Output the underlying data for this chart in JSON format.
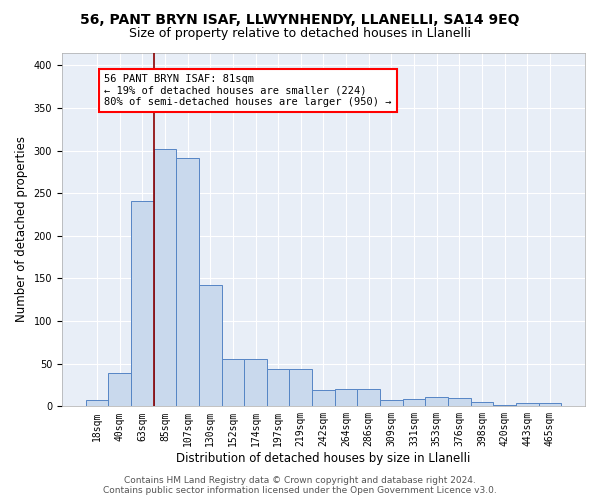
{
  "title1": "56, PANT BRYN ISAF, LLWYNHENDY, LLANELLI, SA14 9EQ",
  "title2": "Size of property relative to detached houses in Llanelli",
  "xlabel": "Distribution of detached houses by size in Llanelli",
  "ylabel": "Number of detached properties",
  "bin_labels": [
    "18sqm",
    "40sqm",
    "63sqm",
    "85sqm",
    "107sqm",
    "130sqm",
    "152sqm",
    "174sqm",
    "197sqm",
    "219sqm",
    "242sqm",
    "264sqm",
    "286sqm",
    "309sqm",
    "331sqm",
    "353sqm",
    "376sqm",
    "398sqm",
    "420sqm",
    "443sqm",
    "465sqm"
  ],
  "bar_heights": [
    8,
    39,
    241,
    302,
    291,
    142,
    55,
    55,
    44,
    44,
    19,
    20,
    20,
    8,
    9,
    11,
    10,
    5,
    1,
    4,
    4
  ],
  "bar_color": "#c9d9ed",
  "bar_edge_color": "#5585c5",
  "bar_edge_width": 0.7,
  "red_line_index": 3,
  "annotation_text": "56 PANT BRYN ISAF: 81sqm\n← 19% of detached houses are smaller (224)\n80% of semi-detached houses are larger (950) →",
  "annotation_box_color": "white",
  "annotation_box_edge_color": "red",
  "ylim": [
    0,
    415
  ],
  "yticks": [
    0,
    50,
    100,
    150,
    200,
    250,
    300,
    350,
    400
  ],
  "background_color": "#e8eef7",
  "footer1": "Contains HM Land Registry data © Crown copyright and database right 2024.",
  "footer2": "Contains public sector information licensed under the Open Government Licence v3.0.",
  "title1_fontsize": 10,
  "title2_fontsize": 9,
  "xlabel_fontsize": 8.5,
  "ylabel_fontsize": 8.5,
  "tick_fontsize": 7,
  "footer_fontsize": 6.5,
  "ann_fontsize": 7.5
}
